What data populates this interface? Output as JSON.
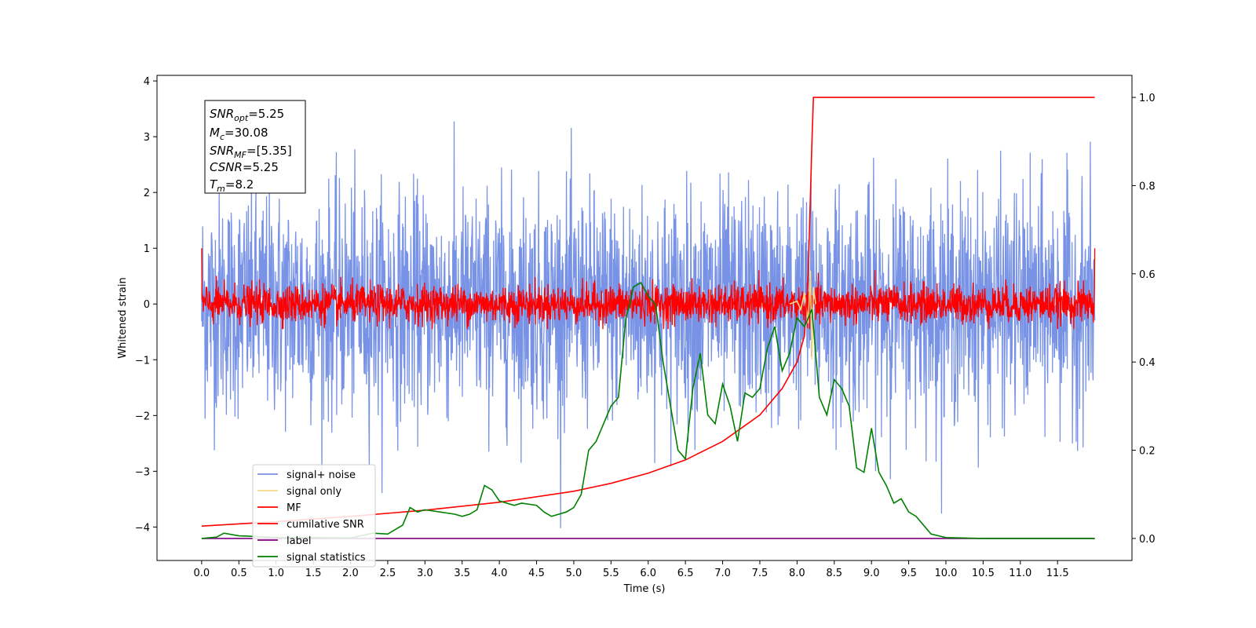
{
  "chart_data": {
    "type": "line",
    "xlabel": "Time (s)",
    "ylabel": "Whitened strain",
    "x_range": [
      -0.6,
      12.5
    ],
    "xlim": [
      -0.6,
      12.5
    ],
    "y_range": [
      -4.6,
      4.1
    ],
    "ylim": [
      -4.6,
      4.1
    ],
    "y2_range": [
      -0.05,
      1.05
    ],
    "x_ticks": [
      "0.0",
      "0.5",
      "1.0",
      "1.5",
      "2.0",
      "2.5",
      "3.0",
      "3.5",
      "4.0",
      "4.5",
      "5.0",
      "5.5",
      "6.0",
      "6.5",
      "7.0",
      "7.5",
      "8.0",
      "8.5",
      "9.0",
      "9.5",
      "10.0",
      "10.5",
      "11.0",
      "11.5"
    ],
    "x_tick_values": [
      0,
      0.5,
      1,
      1.5,
      2,
      2.5,
      3,
      3.5,
      4,
      4.5,
      5,
      5.5,
      6,
      6.5,
      7,
      7.5,
      8,
      8.5,
      9,
      9.5,
      10,
      10.5,
      11,
      11.5
    ],
    "y_ticks": [
      "4",
      "3",
      "2",
      "1",
      "0",
      "−1",
      "−2",
      "−3",
      "−4"
    ],
    "y_tick_values": [
      4,
      3,
      2,
      1,
      0,
      -1,
      -2,
      -3,
      -4
    ],
    "y2_ticks": [
      "0.0",
      "0.2",
      "0.4",
      "0.6",
      "0.8",
      "1.0"
    ],
    "y2_tick_values": [
      0,
      0.2,
      0.4,
      0.6,
      0.8,
      1.0
    ],
    "grid": false,
    "legend_position": "lower-left",
    "annotation": {
      "lines": [
        {
          "var": "SNR",
          "sub": "opt",
          "value": "=5.25"
        },
        {
          "var": "M",
          "sub": "c",
          "value": "=30.08"
        },
        {
          "var": "SNR",
          "sub": "MF",
          "value": "=[5.35]"
        },
        {
          "var": "CSNR",
          "sub": "",
          "value": "=5.25"
        },
        {
          "var": "T",
          "sub": "m",
          "value": "=8.2"
        }
      ]
    },
    "series": [
      {
        "name": "signal+ noise",
        "color": "#7893e6",
        "axis": "left",
        "noise_amplitude": 1.0,
        "x_start": 0.0,
        "x_end": 12.0
      },
      {
        "name": "signal only",
        "color": "#f5d88a",
        "axis": "left",
        "x_start": 7.9,
        "x_end": 8.25,
        "x": [
          7.9,
          8.0,
          8.05,
          8.1,
          8.15,
          8.18,
          8.2,
          8.22,
          8.25
        ],
        "y": [
          0.0,
          0.05,
          -0.1,
          0.2,
          -0.35,
          0.6,
          -1.0,
          0.3,
          0.0
        ]
      },
      {
        "name": "MF",
        "color": "#ff0000",
        "axis": "left",
        "noise_amplitude": 0.17,
        "x_start": 0.0,
        "x_end": 12.0,
        "edge_values": {
          "start": 1.0,
          "end": 1.0
        }
      },
      {
        "name": "cumilative SNR",
        "color": "#ff0000",
        "axis": "right",
        "x": [
          0.0,
          1.0,
          2.0,
          3.0,
          4.0,
          5.0,
          5.5,
          6.0,
          6.5,
          7.0,
          7.5,
          7.8,
          8.0,
          8.1,
          8.15,
          8.2,
          8.22,
          12.0
        ],
        "y": [
          0.028,
          0.038,
          0.05,
          0.064,
          0.082,
          0.107,
          0.125,
          0.148,
          0.178,
          0.22,
          0.28,
          0.34,
          0.4,
          0.46,
          0.6,
          0.9,
          1.0,
          1.0
        ]
      },
      {
        "name": "label",
        "color": "#800080",
        "axis": "right",
        "x": [
          0.0,
          12.0
        ],
        "y": [
          0.0,
          0.0
        ]
      },
      {
        "name": "signal statistics",
        "color": "#008000",
        "axis": "right",
        "x": [
          0.0,
          0.2,
          0.3,
          0.5,
          0.8,
          1.0,
          1.5,
          2.0,
          2.3,
          2.5,
          2.7,
          2.8,
          2.9,
          3.0,
          3.2,
          3.4,
          3.5,
          3.6,
          3.7,
          3.8,
          3.9,
          4.0,
          4.2,
          4.3,
          4.5,
          4.6,
          4.7,
          4.8,
          4.9,
          5.0,
          5.1,
          5.2,
          5.3,
          5.4,
          5.5,
          5.6,
          5.7,
          5.75,
          5.8,
          5.9,
          6.0,
          6.1,
          6.2,
          6.3,
          6.4,
          6.5,
          6.6,
          6.7,
          6.8,
          6.9,
          7.0,
          7.1,
          7.2,
          7.3,
          7.4,
          7.5,
          7.6,
          7.7,
          7.8,
          7.9,
          8.0,
          8.1,
          8.2,
          8.3,
          8.4,
          8.5,
          8.6,
          8.7,
          8.8,
          8.9,
          9.0,
          9.1,
          9.2,
          9.3,
          9.4,
          9.5,
          9.6,
          9.7,
          9.8,
          10.0,
          10.5,
          11.0,
          11.5,
          12.0
        ],
        "y": [
          0.0,
          0.003,
          0.012,
          0.006,
          0.004,
          0.002,
          0.002,
          0.001,
          0.012,
          0.01,
          0.03,
          0.07,
          0.06,
          0.065,
          0.06,
          0.055,
          0.05,
          0.055,
          0.065,
          0.12,
          0.11,
          0.085,
          0.075,
          0.08,
          0.075,
          0.06,
          0.05,
          0.055,
          0.06,
          0.07,
          0.1,
          0.2,
          0.22,
          0.26,
          0.3,
          0.32,
          0.5,
          0.53,
          0.57,
          0.58,
          0.55,
          0.53,
          0.4,
          0.3,
          0.2,
          0.18,
          0.34,
          0.42,
          0.28,
          0.26,
          0.35,
          0.3,
          0.22,
          0.33,
          0.32,
          0.34,
          0.43,
          0.48,
          0.38,
          0.42,
          0.5,
          0.48,
          0.52,
          0.32,
          0.28,
          0.36,
          0.34,
          0.3,
          0.16,
          0.15,
          0.25,
          0.15,
          0.12,
          0.08,
          0.09,
          0.06,
          0.05,
          0.03,
          0.01,
          0.002,
          0.0,
          0.0,
          0.0,
          0.0
        ]
      }
    ]
  }
}
